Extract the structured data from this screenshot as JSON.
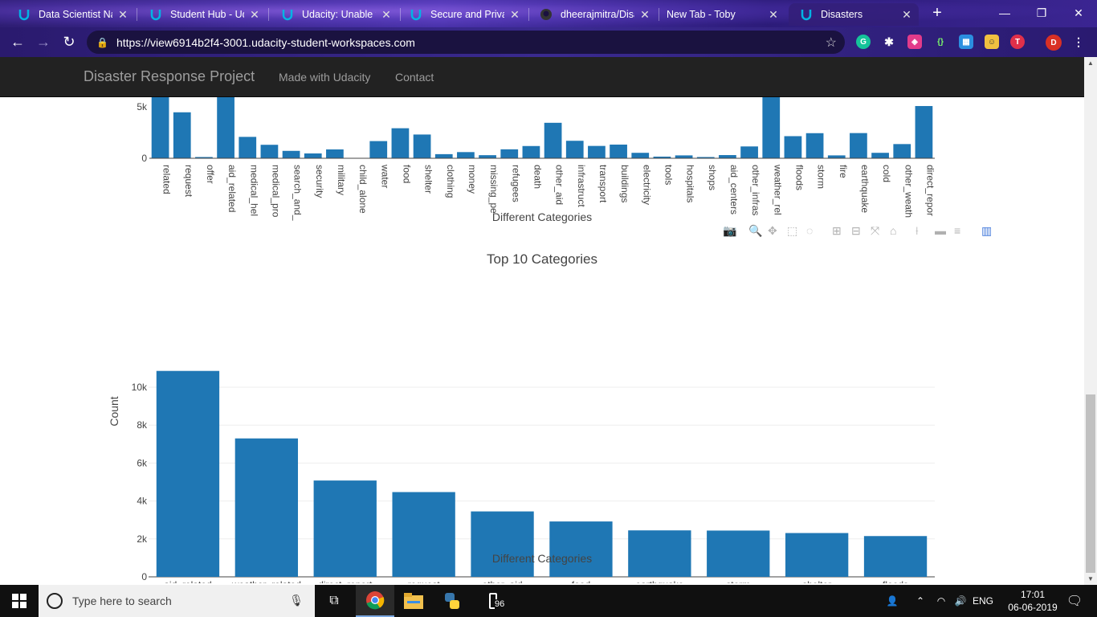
{
  "browser": {
    "tabs": [
      {
        "title": "Data Scientist Nan",
        "icon": "udacity-icon"
      },
      {
        "title": "Student Hub - Uda",
        "icon": "udacity-icon"
      },
      {
        "title": "Udacity: Unable to",
        "icon": "udacity-icon"
      },
      {
        "title": "Secure and Private",
        "icon": "udacity-icon"
      },
      {
        "title": "dheerajmitra/Disas",
        "icon": "github-icon"
      },
      {
        "title": "New Tab - Toby",
        "icon": "none"
      },
      {
        "title": "Disasters",
        "icon": "udacity-icon",
        "active": true
      }
    ],
    "url": "https://view6914b2f4-3001.udacity-student-workspaces.com",
    "profile_initial": "D"
  },
  "navbar": {
    "brand": "Disaster Response Project",
    "links": [
      "Made with Udacity",
      "Contact"
    ]
  },
  "chart_data": [
    {
      "type": "bar",
      "title": "",
      "xlabel": "Different Categories",
      "ylabel": "",
      "yticks_visible": [
        "0",
        "5k"
      ],
      "categories": [
        "related",
        "request",
        "offer",
        "aid_related",
        "medical_hel",
        "medical_pro",
        "search_and_",
        "security",
        "military",
        "child_alone",
        "water",
        "food",
        "shelter",
        "clothing",
        "money",
        "missing_pe",
        "refugees",
        "death",
        "other_aid",
        "infrastruct",
        "transport",
        "buildings",
        "electricity",
        "tools",
        "hospitals",
        "shops",
        "aid_centers",
        "other_infras",
        "weather_rel",
        "floods",
        "storm",
        "fire",
        "earthquake",
        "cold",
        "other_weath",
        "direct_repor"
      ],
      "values": [
        20000,
        4470,
        120,
        10860,
        2080,
        1310,
        720,
        470,
        860,
        0,
        1670,
        2920,
        2310,
        400,
        600,
        300,
        870,
        1190,
        3450,
        1700,
        1200,
        1330,
        530,
        160,
        280,
        120,
        310,
        1150,
        7300,
        2150,
        2440,
        280,
        2450,
        530,
        1380,
        5080
      ],
      "note_visible_range": "clipped above ~5.7k"
    },
    {
      "type": "bar",
      "title": "Top 10 Categories",
      "xlabel": "Different Categories",
      "ylabel": "Count",
      "yticks": [
        "0",
        "2k",
        "4k",
        "6k",
        "8k",
        "10k"
      ],
      "ylim": [
        0,
        11000
      ],
      "categories": [
        "aid_related",
        "weather_related",
        "direct_report",
        "request",
        "other_aid",
        "food",
        "earthquake",
        "storm",
        "shelter",
        "floods"
      ],
      "values": [
        10860,
        7300,
        5080,
        4470,
        3450,
        2920,
        2450,
        2440,
        2310,
        2150
      ]
    }
  ],
  "modebar": [
    "camera-icon",
    "zoom-icon",
    "pan-icon",
    "box-select-icon",
    "lasso-icon",
    "zoom-in-icon",
    "zoom-out-icon",
    "autoscale-icon",
    "reset-axes-icon",
    "spike-lines-icon",
    "hover-closest-icon",
    "hover-compare-icon",
    "plotly-logo-icon"
  ],
  "taskbar": {
    "search_placeholder": "Type here to search",
    "badge": "96",
    "lang": "ENG",
    "time": "17:01",
    "date": "06-06-2019"
  },
  "colors": {
    "bar": "#1f77b4",
    "navbar": "#222222",
    "navtext": "#9d9d9d"
  }
}
